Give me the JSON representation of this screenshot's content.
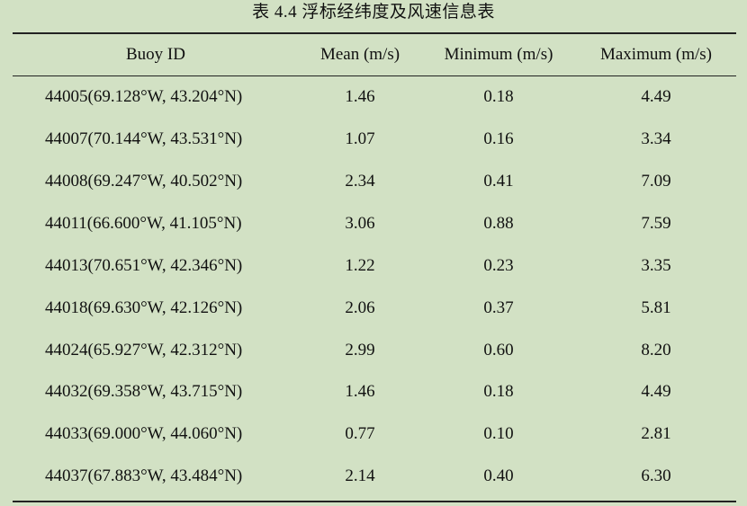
{
  "caption": "表 4.4  浮标经纬度及风速信息表",
  "table": {
    "headers": [
      "Buoy ID",
      "Mean (m/s)",
      "Minimum (m/s)",
      "Maximum (m/s)"
    ],
    "rows": [
      [
        "44005(69.128°W, 43.204°N)",
        "1.46",
        "0.18",
        "4.49"
      ],
      [
        "44007(70.144°W, 43.531°N)",
        "1.07",
        "0.16",
        "3.34"
      ],
      [
        "44008(69.247°W, 40.502°N)",
        "2.34",
        "0.41",
        "7.09"
      ],
      [
        "44011(66.600°W, 41.105°N)",
        "3.06",
        "0.88",
        "7.59"
      ],
      [
        "44013(70.651°W, 42.346°N)",
        "1.22",
        "0.23",
        "3.35"
      ],
      [
        "44018(69.630°W, 42.126°N)",
        "2.06",
        "0.37",
        "5.81"
      ],
      [
        "44024(65.927°W, 42.312°N)",
        "2.99",
        "0.60",
        "8.20"
      ],
      [
        "44032(69.358°W, 43.715°N)",
        "1.46",
        "0.18",
        "4.49"
      ],
      [
        "44033(69.000°W, 44.060°N)",
        "0.77",
        "0.10",
        "2.81"
      ],
      [
        "44037(67.883°W, 43.484°N)",
        "2.14",
        "0.40",
        "6.30"
      ]
    ]
  }
}
